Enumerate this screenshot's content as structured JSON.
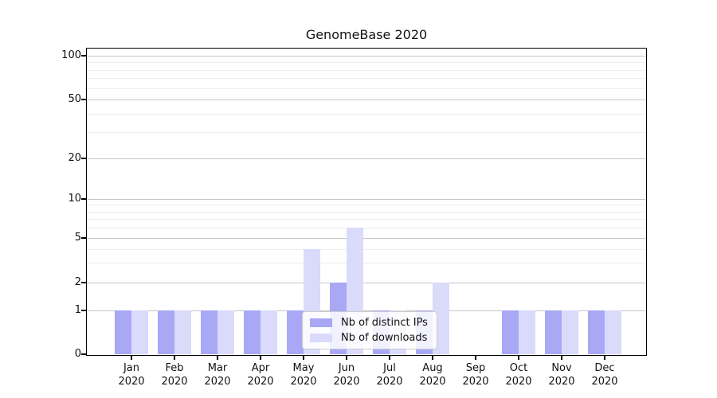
{
  "chart_data": {
    "type": "bar",
    "title": "GenomeBase 2020",
    "categories": [
      "Jan 2020",
      "Feb 2020",
      "Mar 2020",
      "Apr 2020",
      "May 2020",
      "Jun 2020",
      "Jul 2020",
      "Aug 2020",
      "Sep 2020",
      "Oct 2020",
      "Nov 2020",
      "Dec 2020"
    ],
    "series": [
      {
        "name": "Nb of distinct IPs",
        "color": "#a8a8f5",
        "values": [
          1,
          1,
          1,
          1,
          1,
          2,
          1,
          1,
          0,
          1,
          1,
          1
        ]
      },
      {
        "name": "Nb of downloads",
        "color": "#dadafb",
        "values": [
          1,
          1,
          1,
          1,
          4,
          6,
          1,
          2,
          0,
          1,
          1,
          1
        ]
      }
    ],
    "yticks": [
      0,
      1,
      2,
      5,
      10,
      20,
      50,
      100
    ],
    "ylim": [
      0,
      112
    ],
    "yscale": "symlog",
    "xlabel": "",
    "ylabel": "",
    "grid": "both",
    "legend": {
      "position": "inside-lower-center"
    }
  }
}
